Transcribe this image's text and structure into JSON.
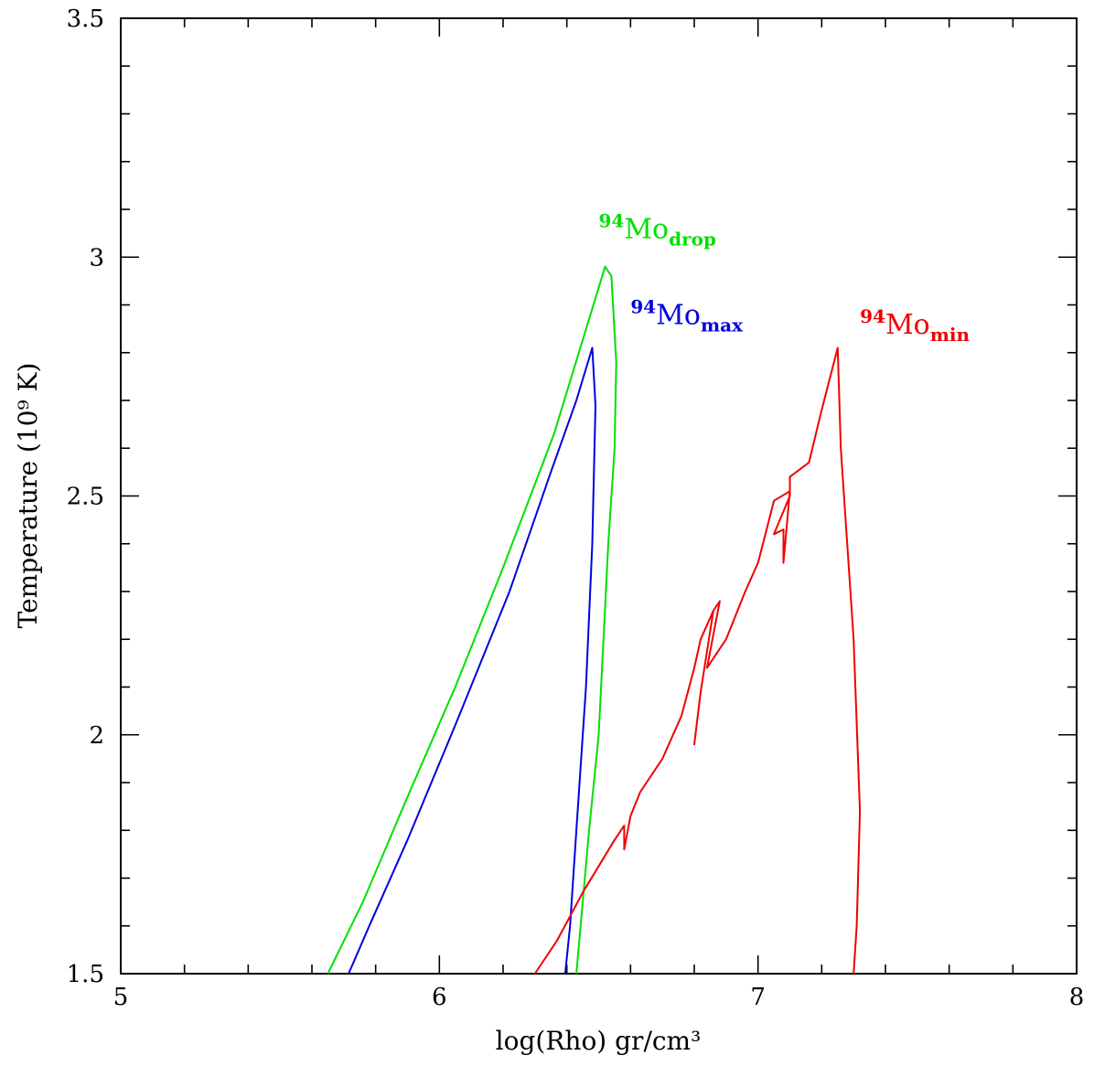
{
  "chart_data": {
    "type": "line",
    "xlabel": "log(Rho) gr/cm³",
    "ylabel": "Temperature (10⁹ K)",
    "xlim": [
      5,
      8
    ],
    "ylim": [
      1.5,
      3.5
    ],
    "x_ticks": [
      5,
      6,
      7,
      8
    ],
    "y_ticks": [
      1.5,
      2,
      2.5,
      3,
      3.5
    ],
    "x_tick_labels": [
      "5",
      "6",
      "7",
      "8"
    ],
    "y_tick_labels": [
      "1.5",
      "2",
      "2.5",
      "3",
      "3.5"
    ],
    "x_minor_step": 0.2,
    "y_minor_step": 0.1,
    "grid": false,
    "series": [
      {
        "name_sup": "94",
        "name_base": "Mo",
        "name_sub": "drop",
        "color": "#00e000",
        "points": [
          [
            5.65,
            1.5
          ],
          [
            5.76,
            1.65
          ],
          [
            5.9,
            1.87
          ],
          [
            6.05,
            2.1
          ],
          [
            6.2,
            2.35
          ],
          [
            6.36,
            2.63
          ],
          [
            6.52,
            2.98
          ],
          [
            6.54,
            2.96
          ],
          [
            6.555,
            2.78
          ],
          [
            6.55,
            2.6
          ],
          [
            6.53,
            2.4
          ],
          [
            6.5,
            2.0
          ],
          [
            6.47,
            1.8
          ],
          [
            6.43,
            1.5
          ]
        ]
      },
      {
        "name_sup": "94",
        "name_base": "Mo",
        "name_sub": "max",
        "color": "#0000e0",
        "points": [
          [
            5.715,
            1.5
          ],
          [
            5.78,
            1.6
          ],
          [
            5.9,
            1.78
          ],
          [
            6.05,
            2.02
          ],
          [
            6.22,
            2.3
          ],
          [
            6.35,
            2.55
          ],
          [
            6.43,
            2.7
          ],
          [
            6.48,
            2.81
          ],
          [
            6.49,
            2.69
          ],
          [
            6.48,
            2.4
          ],
          [
            6.46,
            2.1
          ],
          [
            6.43,
            1.8
          ],
          [
            6.41,
            1.6
          ],
          [
            6.395,
            1.5
          ]
        ]
      },
      {
        "name_sup": "94",
        "name_base": "Mo",
        "name_sub": "min",
        "color": "#f00000",
        "points": [
          [
            6.3,
            1.5
          ],
          [
            6.37,
            1.57
          ],
          [
            6.45,
            1.67
          ],
          [
            6.55,
            1.78
          ],
          [
            6.58,
            1.81
          ],
          [
            6.58,
            1.76
          ],
          [
            6.6,
            1.83
          ],
          [
            6.63,
            1.88
          ],
          [
            6.7,
            1.95
          ],
          [
            6.76,
            2.04
          ],
          [
            6.8,
            2.14
          ],
          [
            6.82,
            2.2
          ],
          [
            6.86,
            2.26
          ],
          [
            6.82,
            2.09
          ],
          [
            6.8,
            1.98
          ],
          [
            6.82,
            2.09
          ],
          [
            6.86,
            2.26
          ],
          [
            6.88,
            2.28
          ],
          [
            6.84,
            2.14
          ],
          [
            6.9,
            2.2
          ],
          [
            6.96,
            2.3
          ],
          [
            7.0,
            2.36
          ],
          [
            7.05,
            2.49
          ],
          [
            7.1,
            2.51
          ],
          [
            7.08,
            2.36
          ],
          [
            7.08,
            2.43
          ],
          [
            7.05,
            2.42
          ],
          [
            7.1,
            2.5
          ],
          [
            7.1,
            2.54
          ],
          [
            7.16,
            2.57
          ],
          [
            7.2,
            2.68
          ],
          [
            7.25,
            2.81
          ],
          [
            7.26,
            2.6
          ],
          [
            7.3,
            2.2
          ],
          [
            7.32,
            1.84
          ],
          [
            7.31,
            1.6
          ],
          [
            7.3,
            1.5
          ]
        ]
      }
    ],
    "annotations": [
      {
        "series": 0,
        "x": 6.5,
        "y": 3.04,
        "color": "#00e000"
      },
      {
        "series": 1,
        "x": 6.6,
        "y": 2.86,
        "color": "#0000e0"
      },
      {
        "series": 2,
        "x": 7.32,
        "y": 2.84,
        "color": "#f00000"
      }
    ]
  }
}
